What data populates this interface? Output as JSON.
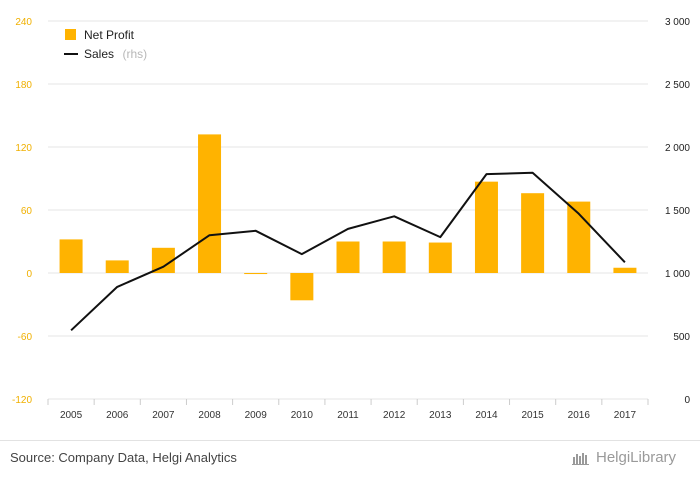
{
  "chart_data": {
    "type": "bar",
    "categories": [
      "2005",
      "2006",
      "2007",
      "2008",
      "2009",
      "2010",
      "2011",
      "2012",
      "2013",
      "2014",
      "2015",
      "2016",
      "2017"
    ],
    "series": [
      {
        "name": "Net Profit",
        "type": "bar",
        "axis": "left",
        "color": "#FFB300",
        "values": [
          32,
          12,
          24,
          132,
          -1,
          -26,
          30,
          30,
          29,
          87,
          76,
          68,
          5
        ]
      },
      {
        "name": "Sales",
        "name_suffix": "(rhs)",
        "type": "line",
        "axis": "right",
        "color": "#111111",
        "values": [
          545,
          890,
          1050,
          1300,
          1335,
          1150,
          1350,
          1450,
          1285,
          1785,
          1795,
          1470,
          1085
        ]
      }
    ],
    "left_axis": {
      "ylim": [
        -120,
        240
      ],
      "ticks": [
        "-120",
        "-60",
        "0",
        "60",
        "120",
        "180",
        "240"
      ],
      "color": "#F0B000"
    },
    "right_axis": {
      "ylim": [
        0,
        3000
      ],
      "ticks": [
        "0",
        "500",
        "1 000",
        "1 500",
        "2 000",
        "2 500",
        "3 000"
      ]
    },
    "grid": true,
    "legend_position": "top-left"
  },
  "footer": {
    "source": "Source: Company Data, Helgi Analytics",
    "brand": "HelgiLibrary"
  }
}
